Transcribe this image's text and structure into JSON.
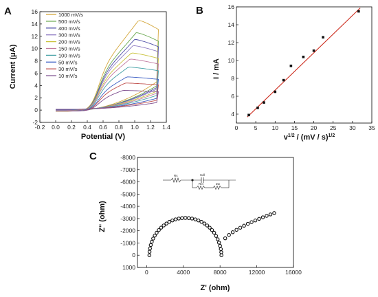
{
  "panels": {
    "a": "A",
    "b": "B",
    "c": "C"
  },
  "chart_data": [
    {
      "type": "line",
      "panel": "A",
      "xlabel": "Potential (V)",
      "ylabel": "Current (μA)",
      "xlim": [
        -0.2,
        1.4
      ],
      "ylim": [
        -2,
        16
      ],
      "xticks": [
        -0.2,
        0.0,
        0.2,
        0.4,
        0.6,
        0.8,
        1.0,
        1.2,
        1.4
      ],
      "yticks": [
        -2,
        0,
        2,
        4,
        6,
        8,
        10,
        12,
        14,
        16
      ],
      "legend_position": "top-left",
      "series": [
        {
          "name": "1000 mV/s",
          "color": "#d4a73c",
          "peak_x": 1.05,
          "peak_y": 14.6,
          "end_y": 13.1,
          "return_y": -0.2
        },
        {
          "name": "500 mV/s",
          "color": "#6aa84f",
          "peak_x": 1.02,
          "peak_y": 12.6,
          "end_y": 11.2,
          "return_y": -0.15
        },
        {
          "name": "400 mV/s",
          "color": "#4c4ca6",
          "peak_x": 1.0,
          "peak_y": 11.5,
          "end_y": 10.3,
          "return_y": -0.1
        },
        {
          "name": "300 mV/s",
          "color": "#8e7cc3",
          "peak_x": 0.98,
          "peak_y": 10.5,
          "end_y": 9.5,
          "return_y": -0.05
        },
        {
          "name": "200 mV/s",
          "color": "#c9c23a",
          "peak_x": 0.96,
          "peak_y": 9.3,
          "end_y": 8.4,
          "return_y": 0.0
        },
        {
          "name": "150 mV/s",
          "color": "#c27ba0",
          "peak_x": 0.94,
          "peak_y": 8.3,
          "end_y": 7.5,
          "return_y": 0.02
        },
        {
          "name": "100 mV/s",
          "color": "#45a1a6",
          "peak_x": 0.92,
          "peak_y": 7.0,
          "end_y": 6.4,
          "return_y": 0.05
        },
        {
          "name": "50 mV/s",
          "color": "#3d5fc4",
          "peak_x": 0.9,
          "peak_y": 5.4,
          "end_y": 5.0,
          "return_y": 0.08
        },
        {
          "name": "30 mV/s",
          "color": "#c0504d",
          "peak_x": 0.88,
          "peak_y": 4.4,
          "end_y": 4.1,
          "return_y": 0.1
        },
        {
          "name": "10 mV/s",
          "color": "#7f4f8f",
          "peak_x": 0.85,
          "peak_y": 3.2,
          "end_y": 3.0,
          "return_y": 0.12
        }
      ]
    },
    {
      "type": "scatter",
      "panel": "B",
      "xlabel": "v1/2 / (mV / s)1/2",
      "ylabel": "I / mA",
      "xlim": [
        0,
        35
      ],
      "ylim": [
        3,
        16
      ],
      "xticks": [
        0,
        5,
        10,
        15,
        20,
        25,
        30,
        35
      ],
      "yticks": [
        4,
        6,
        8,
        10,
        12,
        14,
        16
      ],
      "x": [
        3.2,
        5.5,
        7.1,
        10.0,
        12.2,
        14.1,
        17.3,
        20.0,
        22.4,
        31.6
      ],
      "y": [
        3.9,
        4.7,
        5.3,
        6.5,
        7.8,
        9.4,
        10.4,
        11.1,
        12.6,
        15.5
      ],
      "fit": {
        "slope": 0.418,
        "intercept": 2.5,
        "color": "#cc2b1d"
      }
    },
    {
      "type": "scatter",
      "panel": "C",
      "xlabel": "Z' (ohm)",
      "ylabel": "Z'' (ohm)",
      "xlim": [
        -1000,
        16000
      ],
      "ylim": [
        1000,
        -8000
      ],
      "xticks": [
        0,
        4000,
        8000,
        12000,
        16000
      ],
      "yticks": [
        -8000,
        -7000,
        -6000,
        -5000,
        -4000,
        -3000,
        -2000,
        -1000,
        0,
        1000
      ],
      "semicircle": {
        "start": 300,
        "end": 8150,
        "top": -3050
      },
      "tail": {
        "end_x": 13900,
        "end_y": -3450
      },
      "circuit_labels": {
        "rs": "Rs",
        "cdl": "Cdl",
        "rct": "Rct",
        "zw": "Zw"
      }
    }
  ]
}
